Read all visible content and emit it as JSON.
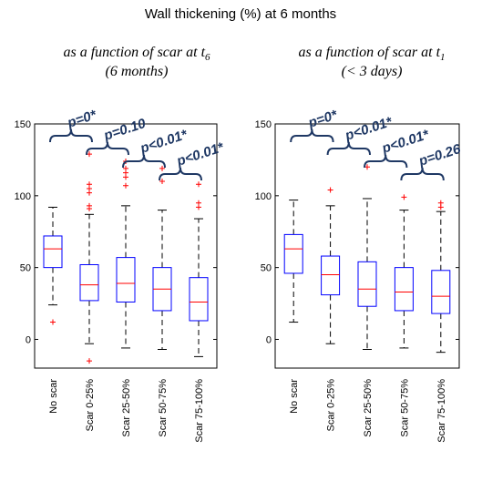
{
  "title": "Wall thickening (%) at 6 months",
  "chart_data": [
    {
      "type": "box",
      "subtitle": "as a function of scar at t",
      "subtitle_subscript": "6",
      "subtitle_line2": "(6 months)",
      "categories": [
        "No scar",
        "Scar 0-25%",
        "Scar 25-50%",
        "Scar 50-75%",
        "Scar 75-100%"
      ],
      "ylim": [
        -20,
        150
      ],
      "yticks": [
        "0",
        "50",
        "100",
        "150"
      ],
      "ytick_values": [
        0,
        50,
        100,
        150
      ],
      "boxes": [
        {
          "whisker_low": 24,
          "q1": 50,
          "median": 63,
          "q3": 72,
          "whisker_high": 92,
          "outliers": [
            12
          ]
        },
        {
          "whisker_low": -3,
          "q1": 27,
          "median": 38,
          "q3": 52,
          "whisker_high": 87,
          "outliers": [
            -15,
            91,
            93,
            102,
            105,
            108,
            129
          ]
        },
        {
          "whisker_low": -6,
          "q1": 26,
          "median": 39,
          "q3": 57,
          "whisker_high": 93,
          "outliers": [
            107,
            113,
            116,
            119,
            124
          ]
        },
        {
          "whisker_low": -7,
          "q1": 20,
          "median": 35,
          "q3": 50,
          "whisker_high": 90,
          "outliers": [
            110,
            119
          ]
        },
        {
          "whisker_low": -12,
          "q1": 13,
          "median": 26,
          "q3": 43,
          "whisker_high": 84,
          "outliers": [
            92,
            95,
            108
          ]
        }
      ],
      "comparisons": [
        {
          "from": 0,
          "to": 1,
          "label": "p=0*"
        },
        {
          "from": 1,
          "to": 2,
          "label": "p=0.10"
        },
        {
          "from": 2,
          "to": 3,
          "label": "p<0.01*"
        },
        {
          "from": 3,
          "to": 4,
          "label": "p<0.01*"
        }
      ],
      "colors": {
        "box": "#0000ff",
        "median": "#ff0000",
        "whisker": "#000000",
        "outlier": "#ff0000",
        "bracket": "#1f3864"
      }
    },
    {
      "type": "box",
      "subtitle": "as a function of scar at t",
      "subtitle_subscript": "1",
      "subtitle_line2": "(< 3 days)",
      "categories": [
        "No scar",
        "Scar 0-25%",
        "Scar 25-50%",
        "Scar 50-75%",
        "Scar 75-100%"
      ],
      "ylim": [
        -20,
        150
      ],
      "yticks": [
        "0",
        "50",
        "100",
        "150"
      ],
      "ytick_values": [
        0,
        50,
        100,
        150
      ],
      "boxes": [
        {
          "whisker_low": 12,
          "q1": 46,
          "median": 63,
          "q3": 73,
          "whisker_high": 97,
          "outliers": []
        },
        {
          "whisker_low": -3,
          "q1": 31,
          "median": 45,
          "q3": 58,
          "whisker_high": 93,
          "outliers": [
            104
          ]
        },
        {
          "whisker_low": -7,
          "q1": 23,
          "median": 35,
          "q3": 54,
          "whisker_high": 98,
          "outliers": [
            120
          ]
        },
        {
          "whisker_low": -6,
          "q1": 20,
          "median": 33,
          "q3": 50,
          "whisker_high": 90,
          "outliers": [
            99
          ]
        },
        {
          "whisker_low": -9,
          "q1": 18,
          "median": 30,
          "q3": 48,
          "whisker_high": 89,
          "outliers": [
            92,
            95
          ]
        }
      ],
      "comparisons": [
        {
          "from": 0,
          "to": 1,
          "label": "p=0*"
        },
        {
          "from": 1,
          "to": 2,
          "label": "p<0.01*"
        },
        {
          "from": 2,
          "to": 3,
          "label": "p<0.01*"
        },
        {
          "from": 3,
          "to": 4,
          "label": "p=0.26"
        }
      ],
      "colors": {
        "box": "#0000ff",
        "median": "#ff0000",
        "whisker": "#000000",
        "outlier": "#ff0000",
        "bracket": "#1f3864"
      }
    }
  ]
}
